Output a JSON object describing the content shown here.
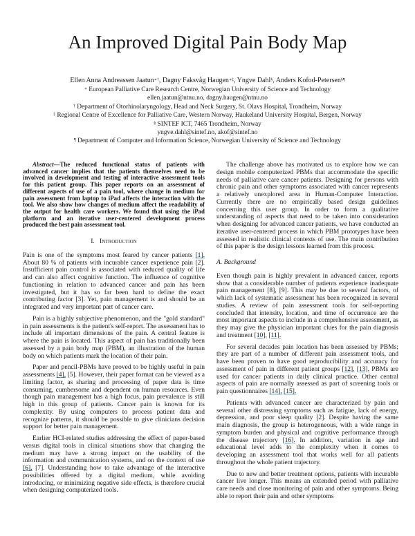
{
  "title": "An Improved Digital Pain Body Map",
  "authors": [
    {
      "name": "Ellen Anna Andreassen Jaatun",
      "marks": "∗†",
      "sep": ", "
    },
    {
      "name": "Dagny Faksvåg Haugen",
      "marks": "∗‡",
      "sep": ", "
    },
    {
      "name": "Yngve Dahl",
      "marks": "§",
      "sep": ", "
    },
    {
      "name": "Anders Kofod-Petersen",
      "marks": "§¶",
      "sep": ""
    }
  ],
  "affiliations": [
    {
      "mark": "∗",
      "text": " European Palliative Care Research Centre, Norwegian University of Science and Technology"
    },
    {
      "mark": "",
      "text": "ellen.jaatun@ntnu.no, dagny.haugen@ntnu.no"
    },
    {
      "mark": "†",
      "text": " Department of Otorhinolaryngology, Head and Neck Surgery, St. Olavs Hospital, Trondheim, Norway"
    },
    {
      "mark": "‡",
      "text": " Regional Centre of Excellence for Palliative Care, Western Norway, Haukeland University Hospital, Bergen, Norway"
    },
    {
      "mark": "§",
      "text": " SINTEF ICT, 7465 Trondheim, Norway"
    },
    {
      "mark": "",
      "text": "yngve.dahl@sintef.no, akof@sintef.no"
    },
    {
      "mark": "¶",
      "text": " Department of Computer and Information Science, Norwegian University of Science and Technology"
    }
  ],
  "abstract": {
    "label": "Abstract",
    "text": "—The reduced functional status of patients with advanced cancer implies that the patients themselves need to be involved in development and testing of interactive assessment tools for this patient group. This paper reports on an assessment of different aspects of use of a pain tool, where change in medium for pain assessment from laptop to iPad affects the interaction with the tool. We also show how changes of medium affect the readability of the output for health care workers. We found that using the iPad platform and an iterative user-centered development process produced the best pain assessment tool."
  },
  "section1": {
    "number": "I.",
    "title": "Introduction"
  },
  "left_paragraphs": [
    [
      {
        "t": "Pain is one of the symptoms most feared by cancer patients "
      },
      {
        "t": "[1].",
        "link": true
      },
      {
        "t": " About 80 % of patients with incurable cancer experience pain [2]. Insufficient pain control is associated with reduced quality of life and can also affect cognitive function. The influence of cognitive functioning in relation to advanced cancer and pain has been investigated, but it has so far been hard to define the exact contributing factor [3]. Yet, pain management is and should be an integrated and very important part of cancer care."
      }
    ],
    [
      {
        "t": "Pain is a highly subjective phenomenon, and the \"gold standard\" in pain assessments is the patient's self-report. The assessment has to include all important dimensions of the pain. A central feature is where the pain is located. This aspect of pain has traditionally been assessed by a pain body map (PBM), an illustration of the human body on which patients mark the location of their pain."
      }
    ],
    [
      {
        "t": "Paper and pencil-PBMs have proved to be highly useful in pain assessments "
      },
      {
        "t": "[4],",
        "link": true
      },
      {
        "t": " [5]. However, their paper format can be viewed as a limiting factor, as sharing and processing of paper data is time consuming, cumbersome and dependent on human resources. Even though pain management has a high focus, pain prevalence is still high in this group of patients. Cancer pain is known for its complexity. By using computers to process patient data and recognize patterns, it should be possible to give clinicians decision support for better pain management."
      }
    ],
    [
      {
        "t": "Earlier HCI-related studies addressing the effect of paper-based versus digital tools in clinical situations show that changing the medium may have a strong impact on the usability of the information and communication systems, and on the context of use "
      },
      {
        "t": "[6],",
        "link": true
      },
      {
        "t": " [7]. Understanding how to take advantage of the interactive possibilities offered by a digital medium, while avoiding introducing, or minimizing negative side effects, is therefore crucial when designing computerized tools."
      }
    ]
  ],
  "right_intro": [
    [
      {
        "t": "The challenge above has motivated us to explore how we can design mobile computerized PBMs that accommodate the specific needs of palliative care cancer patients. Designing for persons with chronic pain and other symptoms associated with cancer represents a relatively unexplored area in Human-Computer Interaction. Currently there are no empirically based design guidelines concerning this user group. In order to form a qualitative understanding of aspects that need to be taken into consideration when designing for advanced cancer patients, we have conducted an iterative user-centered process in which PBM prototypes have been assessed in realistic clinical contexts of use. The main contribution of this paper is the design lessons learned from this process."
      }
    ]
  ],
  "subsection_a": "A.  Background",
  "right_paragraphs": [
    [
      {
        "t": "Even though pain is highly prevalent in advanced cancer, reports show that a considerable number of patients experience inadequate pain management [8], [9]. This may be due to several factors, of which lack of systematic assessment has been recognized in several studies. A review of pain assessment tools for self-reporting concluded that intensity, location, and time of occurrence are the most important aspects to include in a comprehensive assessment, as they may give the physician important clues for the pain diagnosis and treatment "
      },
      {
        "t": "[10],",
        "link": true
      },
      {
        "t": " "
      },
      {
        "t": "[11].",
        "link": true
      }
    ],
    [
      {
        "t": "For several decades pain location has been assessed by PBMs; they are part of a number of different pain assessment tools, and have been proven to have good reproducibility and accuracy for assessment of pain in different patient groups "
      },
      {
        "t": "[12],",
        "link": true
      },
      {
        "t": " "
      },
      {
        "t": "[13].",
        "link": true
      },
      {
        "t": " PBMs are used for cancer patients in daily clinical practice. Other central aspects of pain are normally assessed as part of screening tools or pain questionnaires "
      },
      {
        "t": "[14],",
        "link": true
      },
      {
        "t": " "
      },
      {
        "t": "[15].",
        "link": true
      }
    ],
    [
      {
        "t": "Patients with advanced cancer are characterized by pain and several other distressing symptoms such as fatigue, lack of energy, depression, and poor sleep quality [2]. Despite having the same main diagnosis, the group is heterogeneous, with a wide range in symptom burden and physical and cognitive performance through the disease trajectory "
      },
      {
        "t": "[16].",
        "link": true
      },
      {
        "t": " In addition, variation in age and educational level adds to the complexity when it comes to developing an assessment tool that works well for all patients throughout the whole patient trajectory."
      }
    ],
    [
      {
        "t": "Due to new and better treatment options, patients with incurable cancer live longer. This means an extended period with palliative care needs and close monitoring of pain and other symptoms. Being able to report their pain and other symptoms"
      }
    ]
  ]
}
